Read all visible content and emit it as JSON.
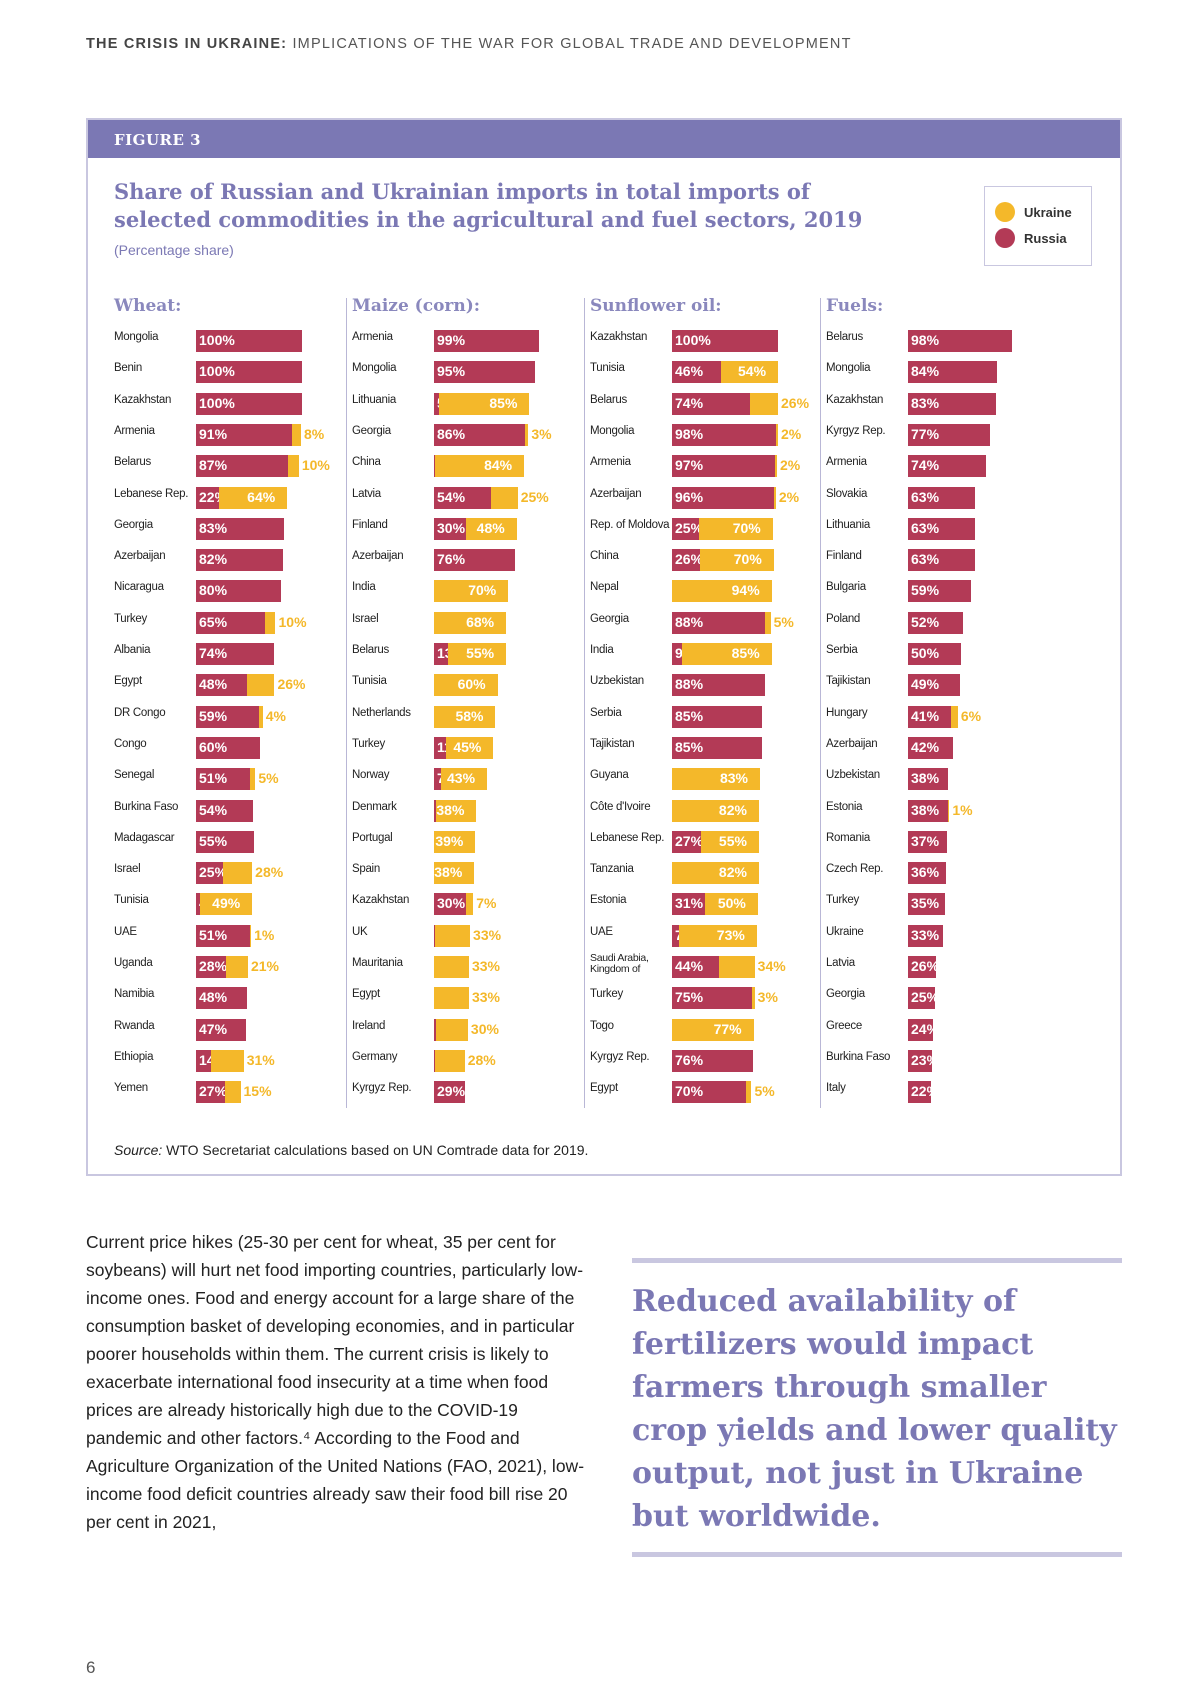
{
  "header": {
    "running_head_bold": "THE CRISIS IN UKRAINE:",
    "running_head_rest": " IMPLICATIONS OF THE WAR FOR GLOBAL TRADE AND DEVELOPMENT"
  },
  "figure": {
    "label": "FIGURE 3",
    "source_label": "Source:",
    "source_text": " WTO Secretariat calculations based on UN Comtrade data for 2019."
  },
  "colors": {
    "ukraine": "#f4b82a",
    "russia": "#b33a56",
    "accent": "#7b78b4"
  },
  "chart_data": {
    "type": "bar",
    "orientation": "horizontal-stacked",
    "title": "Share of Russian and Ukrainian imports in total imports of selected commodities in the agricultural and fuel sectors, 2019",
    "subtitle": "(Percentage share)",
    "unit_suffix": "%",
    "legend": [
      {
        "name": "Ukraine",
        "color": "#f4b82a"
      },
      {
        "name": "Russia",
        "color": "#b33a56"
      }
    ],
    "legend_position": "top-right",
    "xlim": [
      0,
      100
    ],
    "panels": [
      {
        "title": "Wheat:",
        "rows": [
          {
            "country": "Mongolia",
            "russia": 100,
            "ukraine": 0
          },
          {
            "country": "Benin",
            "russia": 100,
            "ukraine": 0
          },
          {
            "country": "Kazakhstan",
            "russia": 100,
            "ukraine": 0
          },
          {
            "country": "Armenia",
            "russia": 91,
            "ukraine": 8
          },
          {
            "country": "Belarus",
            "russia": 87,
            "ukraine": 10
          },
          {
            "country": "Lebanese Rep.",
            "russia": 22,
            "ukraine": 64
          },
          {
            "country": "Georgia",
            "russia": 83,
            "ukraine": 0
          },
          {
            "country": "Azerbaijan",
            "russia": 82,
            "ukraine": 0
          },
          {
            "country": "Nicaragua",
            "russia": 80,
            "ukraine": 0
          },
          {
            "country": "Turkey",
            "russia": 65,
            "ukraine": 10
          },
          {
            "country": "Albania",
            "russia": 74,
            "ukraine": 0
          },
          {
            "country": "Egypt",
            "russia": 48,
            "ukraine": 26
          },
          {
            "country": "DR Congo",
            "russia": 59,
            "ukraine": 4
          },
          {
            "country": "Congo",
            "russia": 60,
            "ukraine": 0
          },
          {
            "country": "Senegal",
            "russia": 51,
            "ukraine": 5
          },
          {
            "country": "Burkina Faso",
            "russia": 54,
            "ukraine": 0
          },
          {
            "country": "Madagascar",
            "russia": 55,
            "ukraine": 0
          },
          {
            "country": "Israel",
            "russia": 25,
            "ukraine": 28
          },
          {
            "country": "Tunisia",
            "russia": 4,
            "ukraine": 49
          },
          {
            "country": "UAE",
            "russia": 51,
            "ukraine": 1
          },
          {
            "country": "Uganda",
            "russia": 28,
            "ukraine": 21
          },
          {
            "country": "Namibia",
            "russia": 48,
            "ukraine": 0
          },
          {
            "country": "Rwanda",
            "russia": 47,
            "ukraine": 0
          },
          {
            "country": "Ethiopia",
            "russia": 14,
            "ukraine": 31
          },
          {
            "country": "Yemen",
            "russia": 27,
            "ukraine": 15
          }
        ]
      },
      {
        "title": "Maize (corn):",
        "rows": [
          {
            "country": "Armenia",
            "russia": 99,
            "ukraine": 0
          },
          {
            "country": "Mongolia",
            "russia": 95,
            "ukraine": 0
          },
          {
            "country": "Lithuania",
            "russia": 5,
            "ukraine": 85
          },
          {
            "country": "Georgia",
            "russia": 86,
            "ukraine": 3
          },
          {
            "country": "China",
            "russia": 1,
            "ukraine": 84
          },
          {
            "country": "Latvia",
            "russia": 54,
            "ukraine": 25
          },
          {
            "country": "Finland",
            "russia": 30,
            "ukraine": 48
          },
          {
            "country": "Azerbaijan",
            "russia": 76,
            "ukraine": 0
          },
          {
            "country": "India",
            "russia": 0,
            "ukraine": 70
          },
          {
            "country": "Israel",
            "russia": 0,
            "ukraine": 68
          },
          {
            "country": "Belarus",
            "russia": 13,
            "ukraine": 55
          },
          {
            "country": "Tunisia",
            "russia": 0,
            "ukraine": 60
          },
          {
            "country": "Netherlands",
            "russia": 0,
            "ukraine": 58
          },
          {
            "country": "Turkey",
            "russia": 11,
            "ukraine": 45
          },
          {
            "country": "Norway",
            "russia": 7,
            "ukraine": 43
          },
          {
            "country": "Denmark",
            "russia": 2,
            "ukraine": 38
          },
          {
            "country": "Portugal",
            "russia": 0,
            "ukraine": 39
          },
          {
            "country": "Spain",
            "russia": 0,
            "ukraine": 38
          },
          {
            "country": "Kazakhstan",
            "russia": 30,
            "ukraine": 7
          },
          {
            "country": "UK",
            "russia": 1,
            "ukraine": 33
          },
          {
            "country": "Mauritania",
            "russia": 0,
            "ukraine": 33
          },
          {
            "country": "Egypt",
            "russia": 0,
            "ukraine": 33
          },
          {
            "country": "Ireland",
            "russia": 2,
            "ukraine": 30
          },
          {
            "country": "Germany",
            "russia": 1,
            "ukraine": 28
          },
          {
            "country": "Kyrgyz Rep.",
            "russia": 29,
            "ukraine": 0
          }
        ]
      },
      {
        "title": "Sunflower oil:",
        "rows": [
          {
            "country": "Kazakhstan",
            "russia": 100,
            "ukraine": 0
          },
          {
            "country": "Tunisia",
            "russia": 46,
            "ukraine": 54
          },
          {
            "country": "Belarus",
            "russia": 74,
            "ukraine": 26
          },
          {
            "country": "Mongolia",
            "russia": 98,
            "ukraine": 2
          },
          {
            "country": "Armenia",
            "russia": 97,
            "ukraine": 2
          },
          {
            "country": "Azerbaijan",
            "russia": 96,
            "ukraine": 2
          },
          {
            "country": "Rep. of Moldova",
            "russia": 25,
            "ukraine": 70
          },
          {
            "country": "China",
            "russia": 26,
            "ukraine": 70
          },
          {
            "country": "Nepal",
            "russia": 0,
            "ukraine": 94
          },
          {
            "country": "Georgia",
            "russia": 88,
            "ukraine": 5
          },
          {
            "country": "India",
            "russia": 9,
            "ukraine": 85
          },
          {
            "country": "Uzbekistan",
            "russia": 88,
            "ukraine": 0
          },
          {
            "country": "Serbia",
            "russia": 85,
            "ukraine": 0
          },
          {
            "country": "Tajikistan",
            "russia": 85,
            "ukraine": 0
          },
          {
            "country": "Guyana",
            "russia": 0,
            "ukraine": 83
          },
          {
            "country": "Côte d'Ivoire",
            "russia": 0,
            "ukraine": 82
          },
          {
            "country": "Lebanese Rep.",
            "russia": 27,
            "ukraine": 55
          },
          {
            "country": "Tanzania",
            "russia": 0,
            "ukraine": 82
          },
          {
            "country": "Estonia",
            "russia": 31,
            "ukraine": 50
          },
          {
            "country": "UAE",
            "russia": 7,
            "ukraine": 73
          },
          {
            "country": "Saudi Arabia, Kingdom of",
            "russia": 44,
            "ukraine": 34
          },
          {
            "country": "Turkey",
            "russia": 75,
            "ukraine": 3
          },
          {
            "country": "Togo",
            "russia": 0,
            "ukraine": 77
          },
          {
            "country": "Kyrgyz Rep.",
            "russia": 76,
            "ukraine": 0
          },
          {
            "country": "Egypt",
            "russia": 70,
            "ukraine": 5
          }
        ]
      },
      {
        "title": "Fuels:",
        "rows": [
          {
            "country": "Belarus",
            "russia": 98,
            "ukraine": 0
          },
          {
            "country": "Mongolia",
            "russia": 84,
            "ukraine": 0
          },
          {
            "country": "Kazakhstan",
            "russia": 83,
            "ukraine": 0
          },
          {
            "country": "Kyrgyz Rep.",
            "russia": 77,
            "ukraine": 0
          },
          {
            "country": "Armenia",
            "russia": 74,
            "ukraine": 0
          },
          {
            "country": "Slovakia",
            "russia": 63,
            "ukraine": 0
          },
          {
            "country": "Lithuania",
            "russia": 63,
            "ukraine": 0
          },
          {
            "country": "Finland",
            "russia": 63,
            "ukraine": 0
          },
          {
            "country": "Bulgaria",
            "russia": 59,
            "ukraine": 0
          },
          {
            "country": "Poland",
            "russia": 52,
            "ukraine": 0
          },
          {
            "country": "Serbia",
            "russia": 50,
            "ukraine": 0
          },
          {
            "country": "Tajikistan",
            "russia": 49,
            "ukraine": 0
          },
          {
            "country": "Hungary",
            "russia": 41,
            "ukraine": 6
          },
          {
            "country": "Azerbaijan",
            "russia": 42,
            "ukraine": 0
          },
          {
            "country": "Uzbekistan",
            "russia": 38,
            "ukraine": 0
          },
          {
            "country": "Estonia",
            "russia": 38,
            "ukraine": 1
          },
          {
            "country": "Romania",
            "russia": 37,
            "ukraine": 0
          },
          {
            "country": "Czech Rep.",
            "russia": 36,
            "ukraine": 0
          },
          {
            "country": "Turkey",
            "russia": 35,
            "ukraine": 0
          },
          {
            "country": "Ukraine",
            "russia": 33,
            "ukraine": 0
          },
          {
            "country": "Latvia",
            "russia": 26,
            "ukraine": 0
          },
          {
            "country": "Georgia",
            "russia": 25,
            "ukraine": 0
          },
          {
            "country": "Greece",
            "russia": 24,
            "ukraine": 0
          },
          {
            "country": "Burkina Faso",
            "russia": 23,
            "ukraine": 0
          },
          {
            "country": "Italy",
            "russia": 22,
            "ukraine": 0
          }
        ]
      }
    ]
  },
  "body": {
    "paragraph": "Current price hikes (25-30 per cent for wheat, 35 per cent for soybeans) will hurt net food importing countries, particularly low-income ones. Food and energy account for a large share of the consumption basket of developing economies, and in particular poorer households within them. The current crisis is likely to exacerbate international food insecurity at a time when food prices are already historically high due to the COVID-19 pandemic and other factors.⁴ According to the Food and Agriculture Organization of the United Nations (FAO, 2021), low-income food deficit countries already saw their food bill rise 20 per cent in 2021,",
    "pull_quote": "Reduced availability of fertilizers would impact farmers through smaller crop yields and lower quality output, not just in Ukraine but worldwide.",
    "page_number": "6"
  }
}
